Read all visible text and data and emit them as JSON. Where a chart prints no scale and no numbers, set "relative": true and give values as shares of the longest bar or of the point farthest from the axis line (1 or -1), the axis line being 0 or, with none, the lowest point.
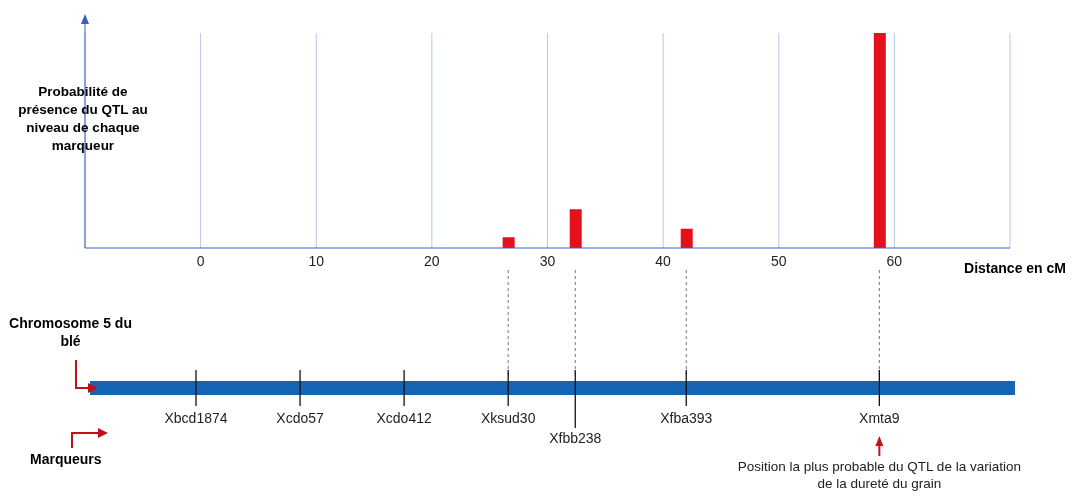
{
  "chart_data": {
    "type": "bar",
    "relative": true,
    "ylabel": "Probabilité de présence du QTL au niveau de chaque marqueur",
    "xlabel": "Distance en cM",
    "x": [
      26.6,
      32.4,
      42,
      58.7
    ],
    "values": [
      0.05,
      0.18,
      0.09,
      1
    ],
    "color": "#e3111b",
    "xlim": [
      -10,
      70
    ],
    "xticks": [
      0,
      10,
      20,
      30,
      40,
      50,
      60
    ],
    "grid": "x",
    "annotations": [
      "Chromosome 5 du blé",
      "Marqueurs",
      "Xbcd1874",
      "Xcdo57",
      "Xcdo412",
      {
        "text": "Xksud30",
        "x": 26.6
      },
      {
        "text": "Xfbb238",
        "x": 32.4
      },
      {
        "text": "Xfba393",
        "x": 42
      },
      {
        "text": "Xmta9",
        "x": 58.7
      },
      {
        "text": "Position la plus probable du QTL de la variation de la dureté du grain",
        "x": 58.7
      }
    ]
  }
}
